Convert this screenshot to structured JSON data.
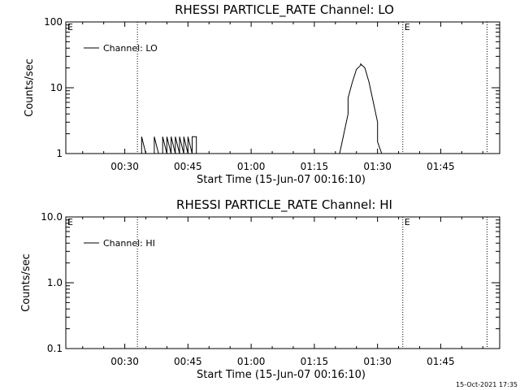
{
  "timestamp": "15-Oct-2021 17:35",
  "chart_data": [
    {
      "type": "line",
      "title": "RHESSI PARTICLE_RATE Channel: LO",
      "xlabel": "Start Time (15-Jun-07 00:16:10)",
      "ylabel": "Counts/sec",
      "yscale": "log",
      "xlim": [
        "00:16",
        "01:59"
      ],
      "ylim": [
        1,
        100
      ],
      "x_ticks": [
        "00:30",
        "00:45",
        "01:00",
        "01:15",
        "01:30",
        "01:45"
      ],
      "y_ticks": [
        "1",
        "10",
        "100"
      ],
      "legend": {
        "position": "top-left",
        "label": "Channel: LO"
      },
      "event_markers": [
        {
          "time": "00:33",
          "label": ""
        },
        {
          "time": "01:36",
          "label": "E"
        },
        {
          "time": "01:56",
          "label": ""
        }
      ],
      "corner_label": "E",
      "series": [
        {
          "name": "Channel: LO",
          "x": [
            "00:16",
            "00:34",
            "00:34",
            "00:35",
            "00:37",
            "00:37",
            "00:38",
            "00:39",
            "00:39",
            "00:40",
            "00:40",
            "00:41",
            "00:41",
            "00:42",
            "00:42",
            "00:43",
            "00:43",
            "00:44",
            "00:44",
            "00:45",
            "00:45",
            "00:46",
            "00:46",
            "00:47",
            "00:47",
            "01:16",
            "01:21",
            "01:22",
            "01:23",
            "01:23",
            "01:24",
            "01:25",
            "01:26",
            "01:26",
            "01:27",
            "01:28",
            "01:29",
            "01:30",
            "01:30",
            "01:31",
            "01:32",
            "01:59"
          ],
          "y": [
            1,
            1,
            1.8,
            1,
            1,
            1.8,
            1,
            1,
            1.8,
            1,
            1.8,
            1,
            1.8,
            1,
            1.8,
            1,
            1.8,
            1,
            1.8,
            1,
            1.8,
            1,
            1.8,
            1.8,
            1,
            1,
            1,
            2,
            4,
            7,
            12,
            19,
            22,
            23,
            20,
            12,
            6,
            3,
            1.5,
            1,
            1,
            1
          ]
        }
      ]
    },
    {
      "type": "line",
      "title": "RHESSI PARTICLE_RATE Channel: HI",
      "xlabel": "Start Time (15-Jun-07 00:16:10)",
      "ylabel": "Counts/sec",
      "yscale": "log",
      "xlim": [
        "00:16",
        "01:59"
      ],
      "ylim": [
        0.1,
        10
      ],
      "x_ticks": [
        "00:30",
        "00:45",
        "01:00",
        "01:15",
        "01:30",
        "01:45"
      ],
      "y_ticks": [
        "0.1",
        "1.0",
        "10.0"
      ],
      "legend": {
        "position": "top-left",
        "label": "Channel: HI"
      },
      "event_markers": [
        {
          "time": "00:33",
          "label": ""
        },
        {
          "time": "01:36",
          "label": "E"
        },
        {
          "time": "01:56",
          "label": ""
        }
      ],
      "corner_label": "E",
      "series": [
        {
          "name": "Channel: HI",
          "x": [],
          "y": []
        }
      ]
    }
  ]
}
